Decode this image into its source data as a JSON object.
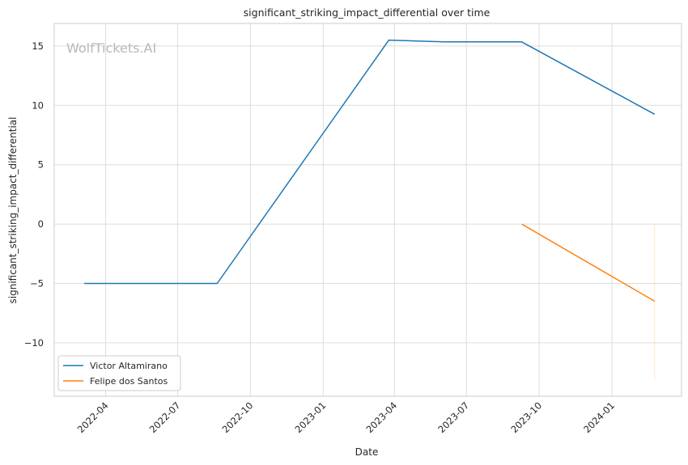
{
  "chart_data": {
    "type": "line",
    "title": "significant_striking_impact_differential over time",
    "xlabel": "Date",
    "ylabel": "significant_striking_impact_differential",
    "watermark": "WolfTickets.AI",
    "x_ticks": [
      "2022-04",
      "2022-07",
      "2022-10",
      "2023-01",
      "2023-04",
      "2023-07",
      "2023-10",
      "2024-01"
    ],
    "y_ticks": [
      15,
      10,
      5,
      0,
      -5,
      -10
    ],
    "y_tick_labels": [
      "15",
      "10",
      "5",
      "0",
      "−5",
      "−10"
    ],
    "xlim": [
      "2022-01-26",
      "2024-03-29"
    ],
    "ylim": [
      -14.5,
      16.9
    ],
    "grid": true,
    "legend_position": "lower-left",
    "series": [
      {
        "name": "Victor Altamirano",
        "color": "#1f77b4",
        "points": [
          {
            "x": "2022-03-05",
            "y": -5.0
          },
          {
            "x": "2022-08-20",
            "y": -5.0
          },
          {
            "x": "2023-03-25",
            "y": 15.5
          },
          {
            "x": "2023-06-03",
            "y": 15.35
          },
          {
            "x": "2023-09-09",
            "y": 15.35
          },
          {
            "x": "2024-02-24",
            "y": 9.25
          }
        ]
      },
      {
        "name": "Felipe dos Santos",
        "color": "#ff7f0e",
        "points": [
          {
            "x": "2023-09-09",
            "y": 0.0
          },
          {
            "x": "2024-02-24",
            "y": -6.5
          }
        ],
        "faint_segment": [
          {
            "x": "2024-02-24",
            "y": 0.0
          },
          {
            "x": "2024-02-24",
            "y": -13.1
          }
        ]
      }
    ]
  }
}
